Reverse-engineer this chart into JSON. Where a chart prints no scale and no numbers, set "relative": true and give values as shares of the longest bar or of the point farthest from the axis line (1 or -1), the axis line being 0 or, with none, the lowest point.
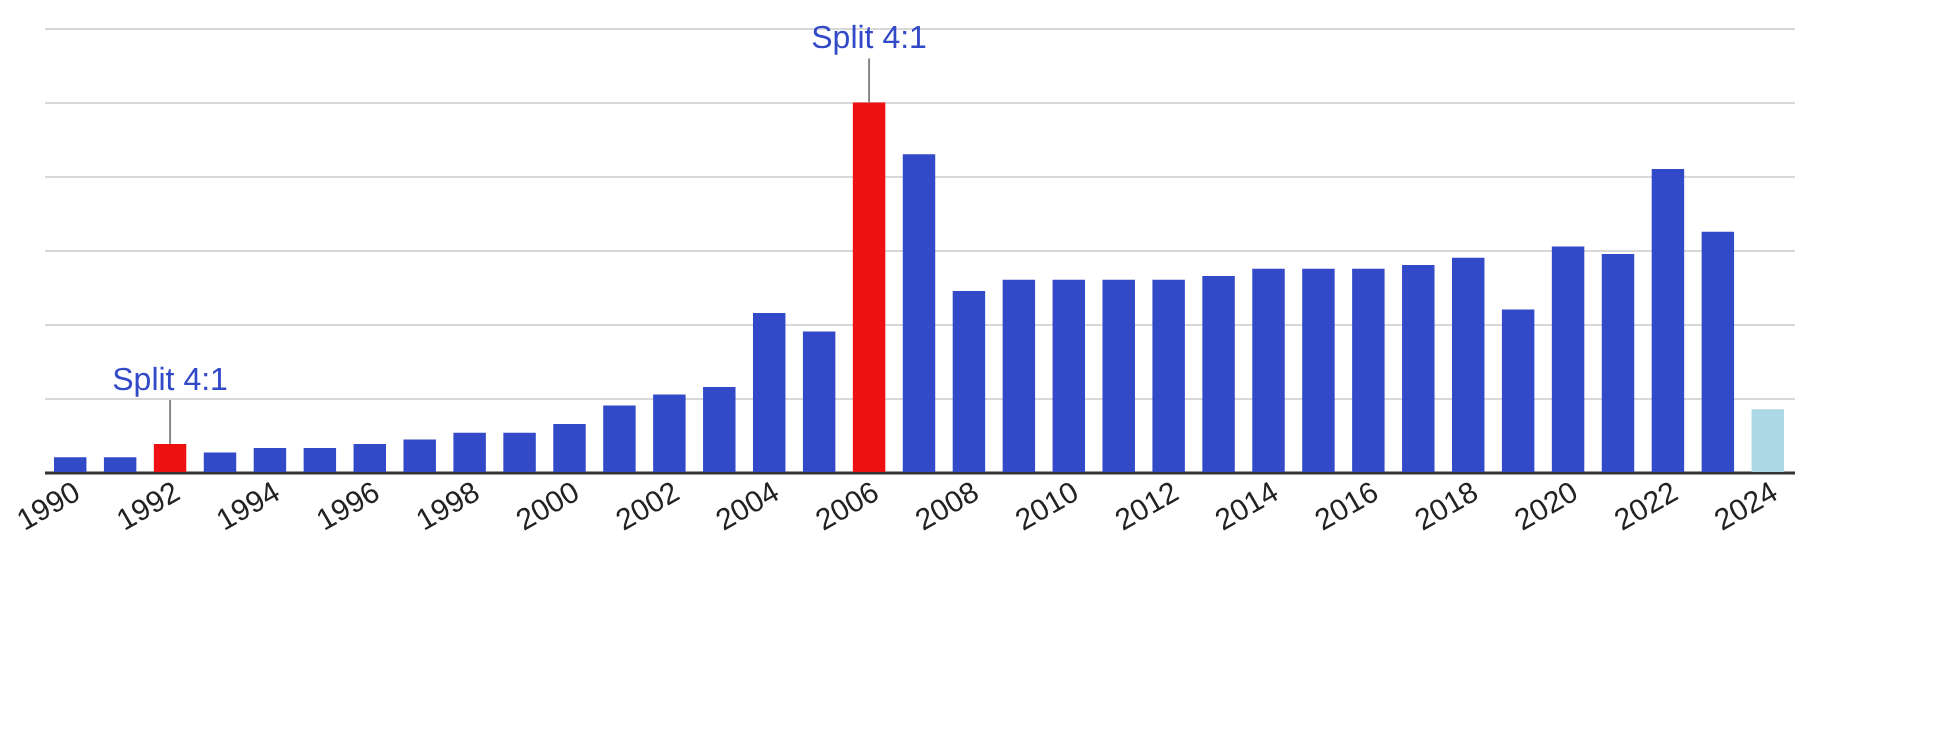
{
  "chart_data": {
    "type": "bar",
    "relative": true,
    "grid": "y",
    "categories": [
      "1990",
      null,
      "1992",
      null,
      "1994",
      null,
      "1996",
      null,
      "1998",
      null,
      "2000",
      null,
      "2002",
      null,
      "2004",
      null,
      "2006",
      null,
      "2008",
      null,
      "2010",
      null,
      "2012",
      null,
      "2014",
      null,
      "2016",
      null,
      "2018",
      null,
      "2020",
      null,
      "2022",
      null,
      "2024"
    ],
    "values": [
      0.04,
      0.04,
      0.076,
      0.053,
      0.065,
      0.065,
      0.076,
      0.088,
      0.106,
      0.106,
      0.13,
      0.18,
      0.21,
      0.23,
      0.43,
      0.38,
      1.0,
      0.86,
      0.49,
      0.52,
      0.52,
      0.52,
      0.52,
      0.53,
      0.55,
      0.55,
      0.55,
      0.56,
      0.58,
      0.44,
      0.61,
      0.59,
      0.82,
      0.65,
      0.17
    ],
    "colors": [
      "#3249c8",
      "#3249c8",
      "#ee1111",
      "#3249c8",
      "#3249c8",
      "#3249c8",
      "#3249c8",
      "#3249c8",
      "#3249c8",
      "#3249c8",
      "#3249c8",
      "#3249c8",
      "#3249c8",
      "#3249c8",
      "#3249c8",
      "#3249c8",
      "#ee1111",
      "#3249c8",
      "#3249c8",
      "#3249c8",
      "#3249c8",
      "#3249c8",
      "#3249c8",
      "#3249c8",
      "#3249c8",
      "#3249c8",
      "#3249c8",
      "#3249c8",
      "#3249c8",
      "#3249c8",
      "#3249c8",
      "#3249c8",
      "#3249c8",
      "#3249c8",
      "#add8e6"
    ],
    "annotations": [
      {
        "text": "Split 4:1",
        "x": "1992",
        "y": 0.076
      },
      {
        "text": "Split 4:1",
        "x": "2006",
        "y": 1.0
      }
    ]
  }
}
